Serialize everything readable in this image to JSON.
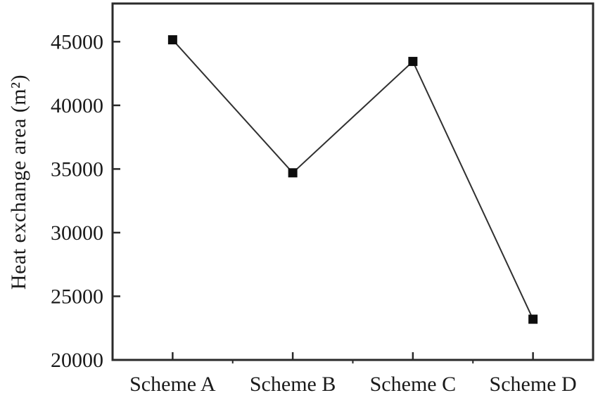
{
  "chart_data": {
    "type": "line",
    "categories": [
      "Scheme A",
      "Scheme B",
      "Scheme C",
      "Scheme D"
    ],
    "values": [
      45150,
      34700,
      43450,
      23200
    ],
    "series_name": "Heat exchange area",
    "title": "",
    "xlabel": "",
    "ylabel": "Heat exchange area (m²)",
    "ylim": [
      20000,
      48000
    ],
    "yticks": [
      20000,
      25000,
      30000,
      35000,
      40000,
      45000
    ],
    "grid": false,
    "legend_position": "none",
    "marker": "filled-square",
    "colors": {
      "line": "#303030",
      "marker": "#0d0d0d",
      "axis": "#2a2a2a",
      "text": "#1a1a1a",
      "background": "#ffffff"
    }
  }
}
